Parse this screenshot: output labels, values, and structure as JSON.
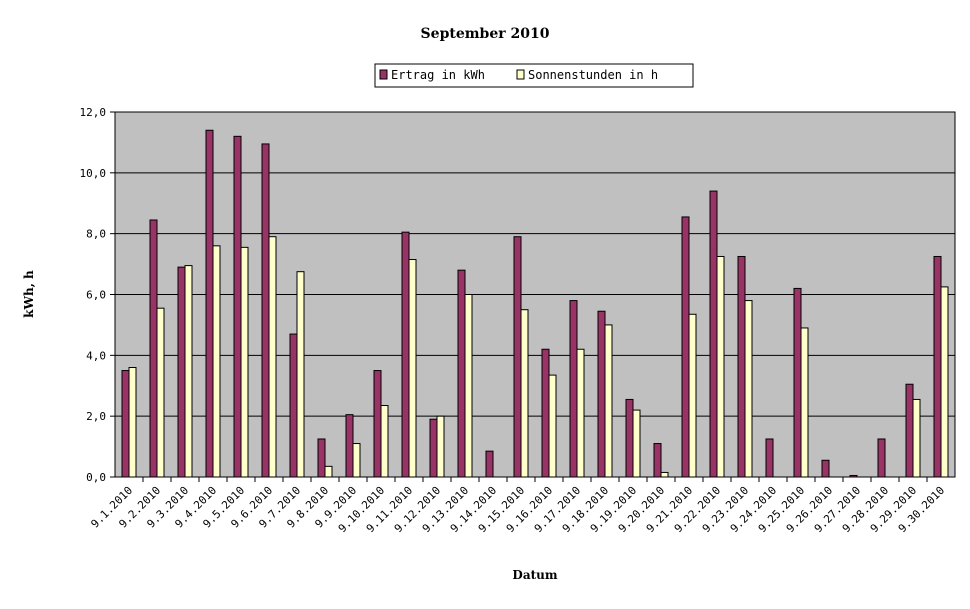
{
  "chart_data": {
    "type": "bar",
    "title": "September 2010",
    "xlabel": "Datum",
    "ylabel": "kWh, h",
    "ylim": [
      0,
      12
    ],
    "yticks": [
      "0,0",
      "2,0",
      "4,0",
      "6,0",
      "8,0",
      "10,0",
      "12,0"
    ],
    "grid": true,
    "legend_position": "top-center",
    "categories": [
      "9.1.2010",
      "9.2.2010",
      "9.3.2010",
      "9.4.2010",
      "9.5.2010",
      "9.6.2010",
      "9.7.2010",
      "9.8.2010",
      "9.9.2010",
      "9.10.2010",
      "9.11.2010",
      "9.12.2010",
      "9.13.2010",
      "9.14.2010",
      "9.15.2010",
      "9.16.2010",
      "9.17.2010",
      "9.18.2010",
      "9.19.2010",
      "9.20.2010",
      "9.21.2010",
      "9.22.2010",
      "9.23.2010",
      "9.24.2010",
      "9.25.2010",
      "9.26.2010",
      "9.27.2010",
      "9.28.2010",
      "9.29.2010",
      "9.30.2010"
    ],
    "series": [
      {
        "name": "Ertrag in kWh",
        "color": "#993366",
        "values": [
          3.5,
          8.45,
          6.9,
          11.4,
          11.2,
          10.95,
          4.7,
          1.25,
          2.05,
          3.5,
          8.05,
          1.9,
          6.8,
          0.85,
          7.9,
          4.2,
          5.8,
          5.45,
          2.55,
          1.1,
          8.55,
          9.4,
          7.25,
          1.25,
          6.2,
          0.55,
          0.05,
          1.25,
          3.05,
          7.25
        ]
      },
      {
        "name": "Sonnenstunden in h",
        "color": "#ffffcc",
        "values": [
          3.6,
          5.55,
          6.95,
          7.6,
          7.55,
          7.9,
          6.75,
          0.35,
          1.1,
          2.35,
          7.15,
          2.0,
          6.0,
          0.0,
          5.5,
          3.35,
          4.2,
          5.0,
          2.2,
          0.15,
          5.35,
          7.25,
          5.8,
          0.0,
          4.9,
          0.0,
          0.0,
          0.0,
          2.55,
          6.25
        ]
      }
    ]
  },
  "colors": {
    "plot_background": "#c0c0c0",
    "gridline": "#000000",
    "series_1": "#993366",
    "series_2": "#ffffcc"
  }
}
